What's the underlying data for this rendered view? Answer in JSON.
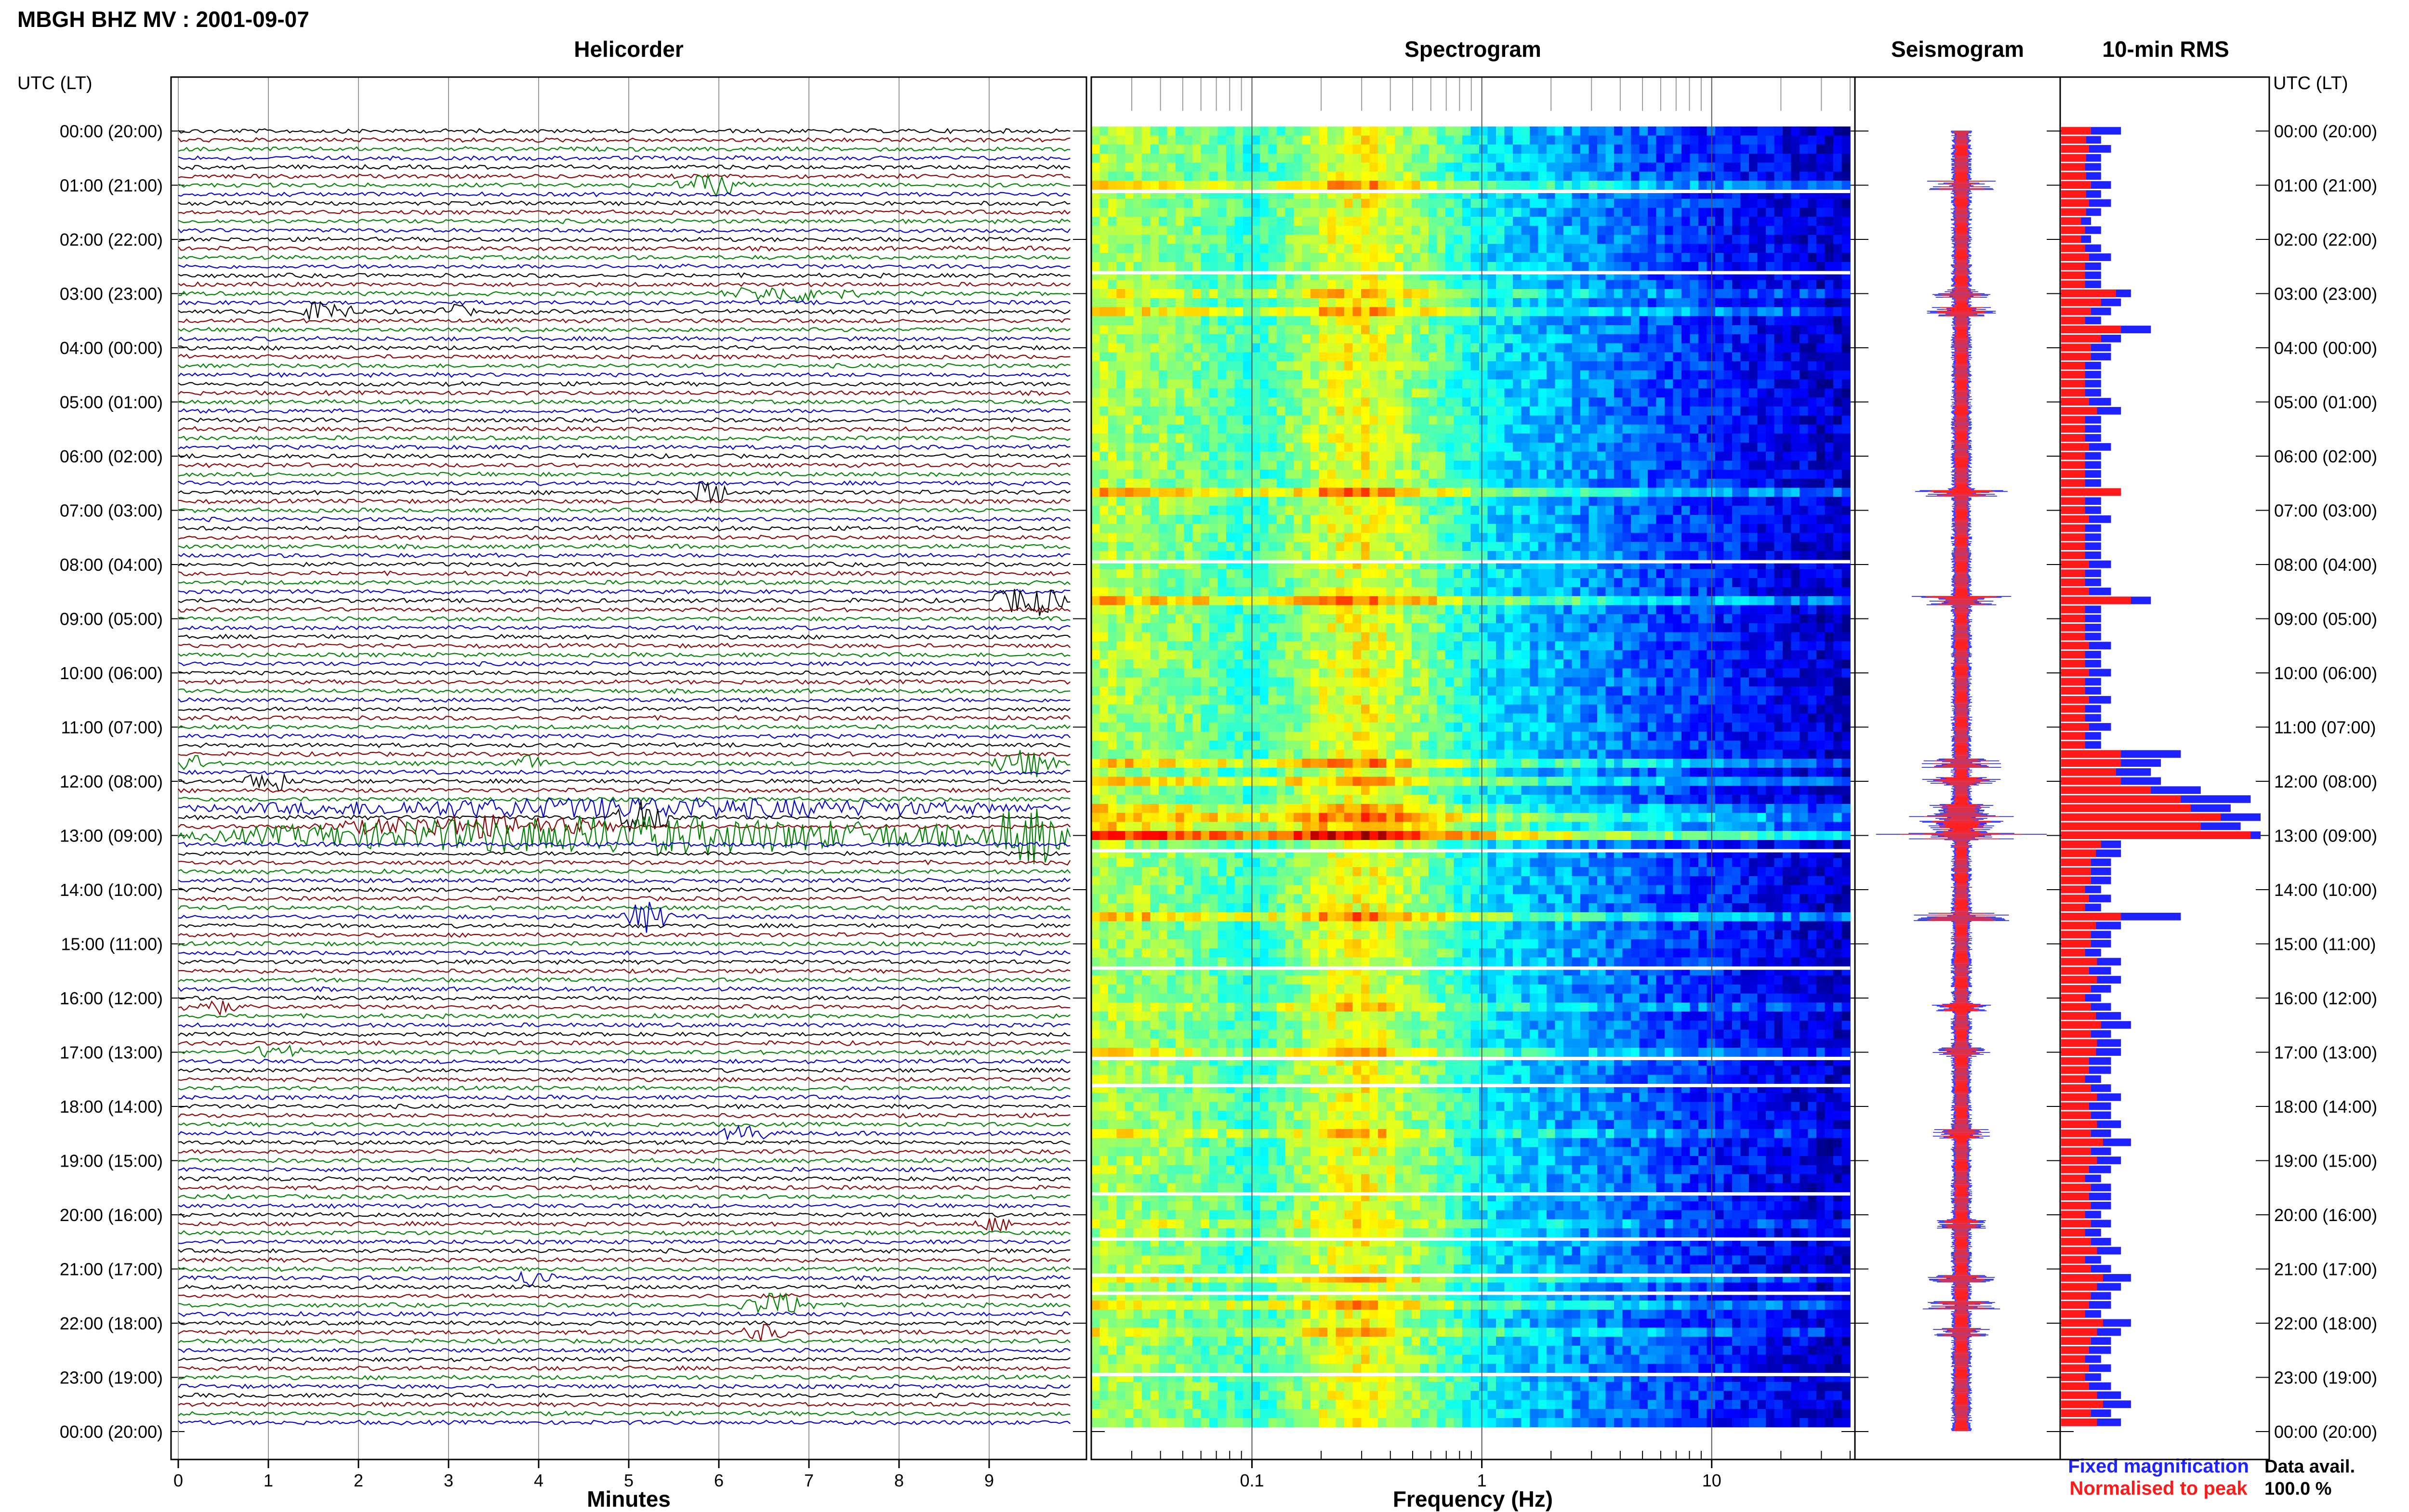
{
  "header": {
    "title": "MBGH BHZ MV : 2001-09-07"
  },
  "time_axis_label": "UTC (LT)",
  "panels": {
    "helicorder": "Helicorder",
    "spectrogram": "Spectrogram",
    "seismogram": "Seismogram",
    "rms": "10-min RMS"
  },
  "helicorder_axis": {
    "label": "Minutes",
    "ticks": [
      "0",
      "1",
      "2",
      "3",
      "4",
      "5",
      "6",
      "7",
      "8",
      "9"
    ]
  },
  "spectrogram_axis": {
    "label": "Frequency (Hz)",
    "ticks": [
      "0.1",
      "1",
      "10"
    ]
  },
  "legend": {
    "fixed": "Fixed magnification",
    "normalised": "Normalised to peak",
    "fixed_color": "#1e22ff",
    "normalised_color": "#ff1a1a"
  },
  "availability": {
    "label": "Data avail.",
    "value": "100.0 %"
  },
  "time_labels": [
    "00:00 (20:00)",
    "01:00 (21:00)",
    "02:00 (22:00)",
    "03:00 (23:00)",
    "04:00 (00:00)",
    "05:00 (01:00)",
    "06:00 (02:00)",
    "07:00 (03:00)",
    "08:00 (04:00)",
    "09:00 (05:00)",
    "10:00 (06:00)",
    "11:00 (07:00)",
    "12:00 (08:00)",
    "13:00 (09:00)",
    "14:00 (10:00)",
    "15:00 (11:00)",
    "16:00 (12:00)",
    "17:00 (13:00)",
    "18:00 (14:00)",
    "19:00 (15:00)",
    "20:00 (16:00)",
    "21:00 (17:00)",
    "22:00 (18:00)",
    "23:00 (19:00)",
    "00:00 (20:00)"
  ],
  "trace_colors": [
    "#000000",
    "#8b0000",
    "#008000",
    "#0000cd"
  ],
  "chart_data": [
    {
      "type": "line",
      "panel": "Helicorder",
      "xlabel": "Minutes",
      "xlim": [
        0,
        10
      ],
      "ylabel": "UTC (LT)",
      "rows": 144,
      "row_minutes": 10,
      "events": [
        {
          "row": 6,
          "start_min": 5.5,
          "end_min": 6.3,
          "amp": 2.2
        },
        {
          "row": 18,
          "start_min": 6.0,
          "end_min": 7.6,
          "amp": 1.6
        },
        {
          "row": 20,
          "start_min": 1.3,
          "end_min": 2.0,
          "amp": 2.2
        },
        {
          "row": 20,
          "start_min": 2.8,
          "end_min": 3.3,
          "amp": 1.2
        },
        {
          "row": 40,
          "start_min": 5.7,
          "end_min": 6.1,
          "amp": 3.0
        },
        {
          "row": 52,
          "start_min": 9.0,
          "end_min": 9.9,
          "amp": 3.2
        },
        {
          "row": 70,
          "start_min": 0.0,
          "end_min": 0.3,
          "amp": 2.0
        },
        {
          "row": 70,
          "start_min": 3.7,
          "end_min": 4.1,
          "amp": 1.5
        },
        {
          "row": 70,
          "start_min": 9.0,
          "end_min": 9.9,
          "amp": 2.8
        },
        {
          "row": 72,
          "start_min": 0.7,
          "end_min": 1.3,
          "amp": 2.5
        },
        {
          "row": 75,
          "start_min": 0.0,
          "end_min": 9.9,
          "amp": 2.0
        },
        {
          "row": 76,
          "start_min": 4.8,
          "end_min": 5.6,
          "amp": 3.5
        },
        {
          "row": 77,
          "start_min": 1.5,
          "end_min": 5.0,
          "amp": 2.2
        },
        {
          "row": 78,
          "start_min": 0.0,
          "end_min": 9.9,
          "amp": 4.0
        },
        {
          "row": 78,
          "start_min": 9.0,
          "end_min": 9.9,
          "amp": 6.0
        },
        {
          "row": 87,
          "start_min": 4.9,
          "end_min": 5.5,
          "amp": 3.0
        },
        {
          "row": 97,
          "start_min": 0.0,
          "end_min": 0.7,
          "amp": 1.5
        },
        {
          "row": 102,
          "start_min": 0.8,
          "end_min": 1.4,
          "amp": 1.6
        },
        {
          "row": 111,
          "start_min": 6.0,
          "end_min": 6.6,
          "amp": 1.6
        },
        {
          "row": 121,
          "start_min": 8.8,
          "end_min": 9.3,
          "amp": 1.3
        },
        {
          "row": 127,
          "start_min": 3.7,
          "end_min": 4.2,
          "amp": 2.0
        },
        {
          "row": 130,
          "start_min": 6.2,
          "end_min": 7.1,
          "amp": 2.4
        },
        {
          "row": 133,
          "start_min": 6.2,
          "end_min": 6.8,
          "amp": 1.6
        }
      ]
    },
    {
      "type": "heatmap",
      "panel": "Spectrogram",
      "xlabel": "Frequency (Hz)",
      "xscale": "log",
      "xlim": [
        0.02,
        40
      ],
      "colormap": "jet",
      "energy_profile_by_frequency": [
        {
          "hz": 0.02,
          "level": 0.55
        },
        {
          "hz": 0.05,
          "level": 0.5
        },
        {
          "hz": 0.1,
          "level": 0.42
        },
        {
          "hz": 0.2,
          "level": 0.58
        },
        {
          "hz": 0.3,
          "level": 0.62
        },
        {
          "hz": 0.6,
          "level": 0.48
        },
        {
          "hz": 1.0,
          "level": 0.36
        },
        {
          "hz": 3.0,
          "level": 0.26
        },
        {
          "hz": 10.0,
          "level": 0.16
        },
        {
          "hz": 30.0,
          "level": 0.08
        }
      ],
      "gap_rows": [
        7,
        16,
        48,
        80,
        93,
        103,
        106,
        118,
        123,
        127,
        129,
        138
      ]
    },
    {
      "type": "bar",
      "panel": "10-min RMS",
      "orientation": "horizontal",
      "series": [
        {
          "name": "Fixed magnification",
          "color": "#1e22ff",
          "values": [
            0.6,
            0.4,
            0.5,
            0.4,
            0.4,
            0.4,
            0.5,
            0.4,
            0.5,
            0.4,
            0.3,
            0.4,
            0.3,
            0.4,
            0.5,
            0.4,
            0.4,
            0.4,
            0.7,
            0.6,
            0.5,
            0.4,
            0.9,
            0.6,
            0.5,
            0.5,
            0.4,
            0.4,
            0.4,
            0.4,
            0.5,
            0.6,
            0.4,
            0.4,
            0.4,
            0.5,
            0.4,
            0.4,
            0.4,
            0.4,
            0.6,
            0.4,
            0.4,
            0.5,
            0.4,
            0.4,
            0.4,
            0.4,
            0.5,
            0.4,
            0.4,
            0.5,
            0.9,
            0.4,
            0.4,
            0.4,
            0.4,
            0.5,
            0.4,
            0.4,
            0.5,
            0.4,
            0.4,
            0.5,
            0.4,
            0.4,
            0.5,
            0.4,
            0.4,
            1.2,
            1.0,
            0.9,
            1.0,
            1.4,
            1.9,
            1.7,
            2.0,
            1.8,
            2.0,
            0.6,
            0.6,
            0.5,
            0.5,
            0.5,
            0.4,
            0.5,
            0.4,
            1.2,
            0.6,
            0.5,
            0.5,
            0.4,
            0.6,
            0.5,
            0.6,
            0.5,
            0.4,
            0.5,
            0.6,
            0.7,
            0.5,
            0.6,
            0.6,
            0.5,
            0.5,
            0.4,
            0.5,
            0.6,
            0.5,
            0.5,
            0.6,
            0.5,
            0.7,
            0.5,
            0.6,
            0.5,
            0.4,
            0.5,
            0.5,
            0.5,
            0.4,
            0.5,
            0.4,
            0.5,
            0.6,
            0.4,
            0.5,
            0.7,
            0.6,
            0.5,
            0.5,
            0.4,
            0.7,
            0.6,
            0.5,
            0.5,
            0.4,
            0.5,
            0.4,
            0.5,
            0.6,
            0.7,
            0.5,
            0.6
          ]
        },
        {
          "name": "Normalised to peak",
          "color": "#ff1a1a",
          "values": [
            0.3,
            0.25,
            0.28,
            0.25,
            0.24,
            0.25,
            0.3,
            0.25,
            0.28,
            0.25,
            0.2,
            0.24,
            0.2,
            0.24,
            0.28,
            0.24,
            0.24,
            0.24,
            0.55,
            0.4,
            0.3,
            0.24,
            0.6,
            0.4,
            0.3,
            0.3,
            0.24,
            0.24,
            0.24,
            0.24,
            0.28,
            0.36,
            0.24,
            0.24,
            0.24,
            0.28,
            0.24,
            0.24,
            0.24,
            0.24,
            0.6,
            0.24,
            0.24,
            0.28,
            0.24,
            0.24,
            0.24,
            0.24,
            0.28,
            0.24,
            0.24,
            0.28,
            0.7,
            0.24,
            0.24,
            0.24,
            0.24,
            0.28,
            0.24,
            0.24,
            0.28,
            0.24,
            0.24,
            0.28,
            0.24,
            0.24,
            0.28,
            0.24,
            0.24,
            0.6,
            0.6,
            0.55,
            0.6,
            0.9,
            1.2,
            1.3,
            1.6,
            1.4,
            1.9,
            0.4,
            0.35,
            0.3,
            0.3,
            0.3,
            0.24,
            0.28,
            0.24,
            0.6,
            0.35,
            0.3,
            0.3,
            0.24,
            0.36,
            0.28,
            0.36,
            0.3,
            0.24,
            0.3,
            0.35,
            0.4,
            0.3,
            0.36,
            0.35,
            0.28,
            0.28,
            0.24,
            0.3,
            0.36,
            0.28,
            0.3,
            0.36,
            0.3,
            0.42,
            0.3,
            0.36,
            0.28,
            0.24,
            0.3,
            0.28,
            0.3,
            0.24,
            0.3,
            0.24,
            0.3,
            0.36,
            0.24,
            0.3,
            0.42,
            0.36,
            0.3,
            0.28,
            0.24,
            0.42,
            0.36,
            0.3,
            0.28,
            0.24,
            0.28,
            0.24,
            0.28,
            0.36,
            0.42,
            0.3,
            0.36
          ]
        }
      ]
    }
  ]
}
